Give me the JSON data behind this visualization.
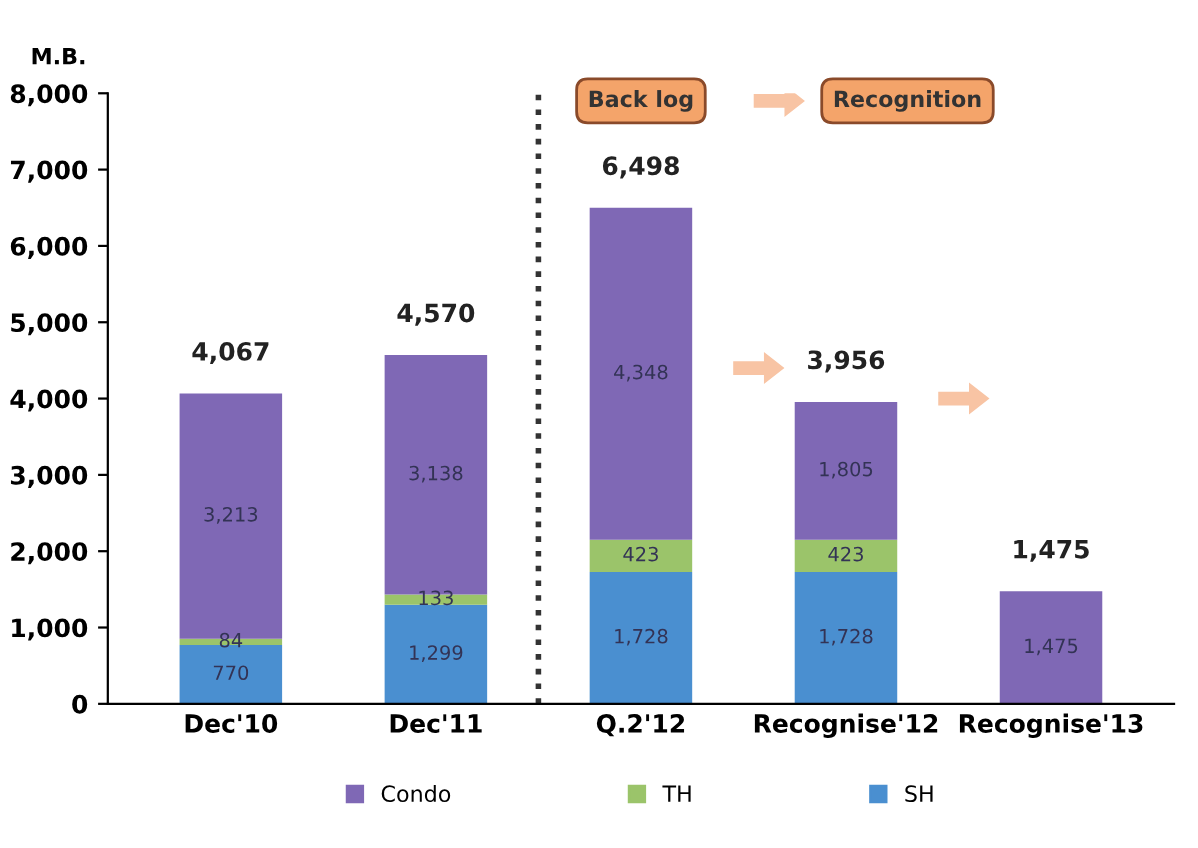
{
  "chart_data": {
    "type": "bar",
    "stacked": true,
    "ylabel": "M.B.",
    "categories": [
      "Dec'10",
      "Dec'11",
      "Q.2'12",
      "Recognise'12",
      "Recognise'13"
    ],
    "series": [
      {
        "name": "SH",
        "color": "#4a8fd0",
        "values": [
          770,
          1299,
          1728,
          1728,
          null
        ],
        "value_labels": [
          "770",
          "1,299",
          "1,728",
          "1,728",
          null
        ]
      },
      {
        "name": "TH",
        "color": "#9bc46a",
        "values": [
          84,
          133,
          423,
          423,
          null
        ],
        "value_labels": [
          "84",
          "133",
          "423",
          "423",
          null
        ]
      },
      {
        "name": "Condo",
        "color": "#7f68b5",
        "values": [
          3213,
          3138,
          4348,
          1805,
          1475
        ],
        "value_labels": [
          "3,213",
          "3,138",
          "4,348",
          "1,805",
          "1,475"
        ]
      }
    ],
    "totals": [
      "4,067",
      "4,570",
      "6,498",
      "3,956",
      "1,475"
    ],
    "ylim": [
      0,
      8000
    ],
    "yticks": [
      {
        "value": 0,
        "label": "0"
      },
      {
        "value": 1000,
        "label": "1,000"
      },
      {
        "value": 2000,
        "label": "2,000"
      },
      {
        "value": 3000,
        "label": "3,000"
      },
      {
        "value": 4000,
        "label": "4,000"
      },
      {
        "value": 5000,
        "label": "5,000"
      },
      {
        "value": 6000,
        "label": "6,000"
      },
      {
        "value": 7000,
        "label": "7,000"
      },
      {
        "value": 8000,
        "label": "8,000"
      }
    ],
    "annotations": [
      "Back log",
      "Recognition"
    ],
    "legend": "bottom",
    "grid": false
  }
}
